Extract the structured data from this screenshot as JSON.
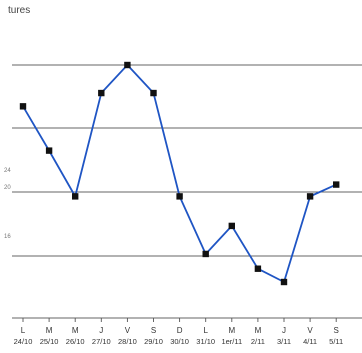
{
  "chart_data": {
    "type": "line",
    "title": "tures",
    "categories": [
      {
        "day": "L",
        "date": "24/10"
      },
      {
        "day": "M",
        "date": "25/10"
      },
      {
        "day": "M",
        "date": "26/10"
      },
      {
        "day": "J",
        "date": "27/10"
      },
      {
        "day": "V",
        "date": "28/10"
      },
      {
        "day": "S",
        "date": "29/10"
      },
      {
        "day": "D",
        "date": "30/10"
      },
      {
        "day": "L",
        "date": "31/10"
      },
      {
        "day": "M",
        "date": "1er/11"
      },
      {
        "day": "M",
        "date": "2/11"
      },
      {
        "day": "J",
        "date": "3/11"
      },
      {
        "day": "V",
        "date": "4/11"
      },
      {
        "day": "S",
        "date": "5/11"
      }
    ],
    "y_ticks": [
      "24",
      "20",
      "16"
    ],
    "series": [
      {
        "values": [
          19.2,
          16.2,
          13.1,
          20.1,
          22.0,
          20.1,
          13.1,
          9.2,
          11.1,
          8.2,
          7.3,
          13.1,
          13.9
        ]
      }
    ],
    "ylim": [
      2,
      26
    ],
    "grid": true,
    "colors": {
      "line": "#1f55c4",
      "marker": "#111111",
      "grid": "#666666"
    }
  }
}
